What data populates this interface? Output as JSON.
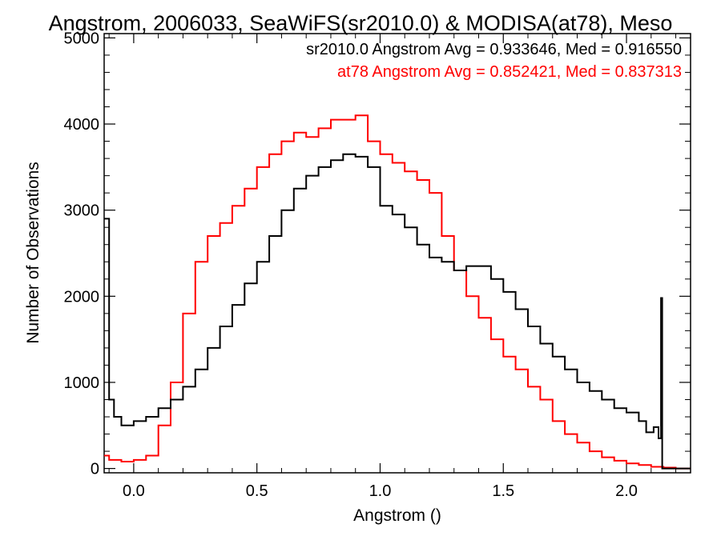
{
  "chart_data": {
    "type": "line",
    "title": "Angstrom, 2006033, SeaWiFS(sr2010.0) & MODISA(at78), Meso",
    "xlabel": "Angstrom ()",
    "ylabel": "Number of Observations",
    "xlim": [
      -0.12,
      2.26
    ],
    "ylim": [
      -50,
      5050
    ],
    "x_ticks": [
      0.0,
      0.5,
      1.0,
      1.5,
      2.0
    ],
    "x_tick_labels": [
      "0.0",
      "0.5",
      "1.0",
      "1.5",
      "2.0"
    ],
    "y_ticks": [
      0,
      1000,
      2000,
      3000,
      4000,
      5000
    ],
    "y_tick_labels": [
      "0",
      "1000",
      "2000",
      "3000",
      "4000",
      "5000"
    ],
    "grid": false,
    "legend": "top-right",
    "annotations": [
      {
        "text": "sr2010.0 Angstrom Avg = 0.933646, Med = 0.916550",
        "color": "#000000"
      },
      {
        "text": "at78 Angstrom Avg = 0.852421, Med = 0.837313",
        "color": "#ff0000"
      }
    ],
    "series": [
      {
        "name": "sr2010.0",
        "color": "#000000",
        "style": "step",
        "x": [
          -0.12,
          -0.1,
          -0.08,
          -0.05,
          0.0,
          0.05,
          0.1,
          0.15,
          0.2,
          0.25,
          0.3,
          0.35,
          0.4,
          0.45,
          0.5,
          0.55,
          0.6,
          0.65,
          0.7,
          0.75,
          0.8,
          0.85,
          0.9,
          0.95,
          1.0,
          1.05,
          1.1,
          1.15,
          1.2,
          1.25,
          1.3,
          1.35,
          1.4,
          1.45,
          1.5,
          1.55,
          1.6,
          1.65,
          1.7,
          1.75,
          1.8,
          1.85,
          1.9,
          1.95,
          2.0,
          2.05,
          2.08,
          2.11,
          2.13,
          2.14,
          2.145,
          2.15,
          2.2,
          2.26
        ],
        "y": [
          2900,
          800,
          600,
          500,
          550,
          600,
          700,
          800,
          950,
          1150,
          1400,
          1650,
          1900,
          2150,
          2400,
          2700,
          3000,
          3250,
          3400,
          3500,
          3580,
          3650,
          3620,
          3500,
          3050,
          2950,
          2800,
          2600,
          2450,
          2400,
          2300,
          2350,
          2350,
          2200,
          2050,
          1850,
          1650,
          1450,
          1300,
          1150,
          1000,
          900,
          800,
          700,
          650,
          550,
          420,
          480,
          350,
          1980,
          0,
          0,
          0,
          0
        ]
      },
      {
        "name": "at78",
        "color": "#ff0000",
        "style": "step",
        "x": [
          -0.12,
          -0.1,
          -0.05,
          0.0,
          0.05,
          0.1,
          0.15,
          0.2,
          0.25,
          0.3,
          0.35,
          0.4,
          0.45,
          0.5,
          0.55,
          0.6,
          0.65,
          0.7,
          0.75,
          0.8,
          0.85,
          0.9,
          0.95,
          1.0,
          1.05,
          1.1,
          1.15,
          1.2,
          1.25,
          1.3,
          1.35,
          1.4,
          1.45,
          1.5,
          1.55,
          1.6,
          1.65,
          1.7,
          1.75,
          1.8,
          1.85,
          1.9,
          1.95,
          2.0,
          2.05,
          2.1,
          2.15,
          2.2,
          2.26
        ],
        "y": [
          150,
          100,
          80,
          100,
          150,
          500,
          1000,
          1800,
          2400,
          2700,
          2850,
          3050,
          3250,
          3500,
          3650,
          3800,
          3900,
          3850,
          3950,
          4050,
          4050,
          4100,
          3800,
          3650,
          3550,
          3450,
          3350,
          3200,
          2700,
          2300,
          2000,
          1750,
          1500,
          1300,
          1150,
          950,
          800,
          550,
          400,
          300,
          200,
          130,
          90,
          60,
          40,
          20,
          10,
          0,
          0
        ]
      }
    ]
  }
}
